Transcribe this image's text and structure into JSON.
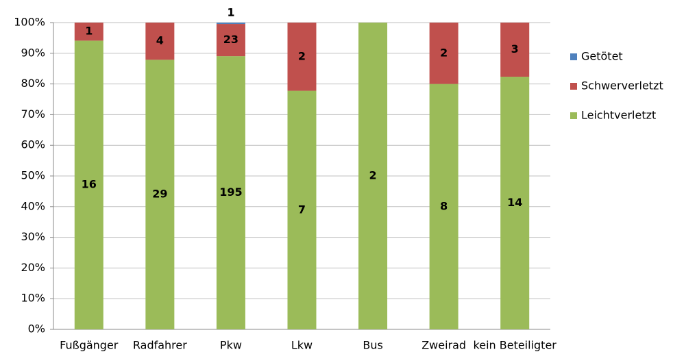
{
  "chart_data": {
    "type": "bar",
    "stacking": "percent",
    "categories": [
      "Fußgänger",
      "Radfahrer",
      "Pkw",
      "Lkw",
      "Bus",
      "Zweirad",
      "kein Beteiligter"
    ],
    "series": [
      {
        "name": "Leichtverletzt",
        "color": "#9bbb59",
        "values": [
          16,
          29,
          195,
          7,
          2,
          8,
          14
        ]
      },
      {
        "name": "Schwerverletzt",
        "color": "#c0504d",
        "values": [
          1,
          4,
          23,
          2,
          0,
          2,
          3
        ]
      },
      {
        "name": "Getötet",
        "color": "#4f81bd",
        "values": [
          0,
          0,
          1,
          0,
          0,
          0,
          0
        ]
      }
    ],
    "ylim": [
      0,
      100
    ],
    "yticks": [
      {
        "value": 0,
        "label": "0%"
      },
      {
        "value": 10,
        "label": "10%"
      },
      {
        "value": 20,
        "label": "20%"
      },
      {
        "value": 30,
        "label": "30%"
      },
      {
        "value": 40,
        "label": "40%"
      },
      {
        "value": 50,
        "label": "50%"
      },
      {
        "value": 60,
        "label": "60%"
      },
      {
        "value": 70,
        "label": "70%"
      },
      {
        "value": 80,
        "label": "80%"
      },
      {
        "value": 90,
        "label": "90%"
      },
      {
        "value": 100,
        "label": "100%"
      }
    ],
    "grid": true,
    "legend": "right"
  }
}
